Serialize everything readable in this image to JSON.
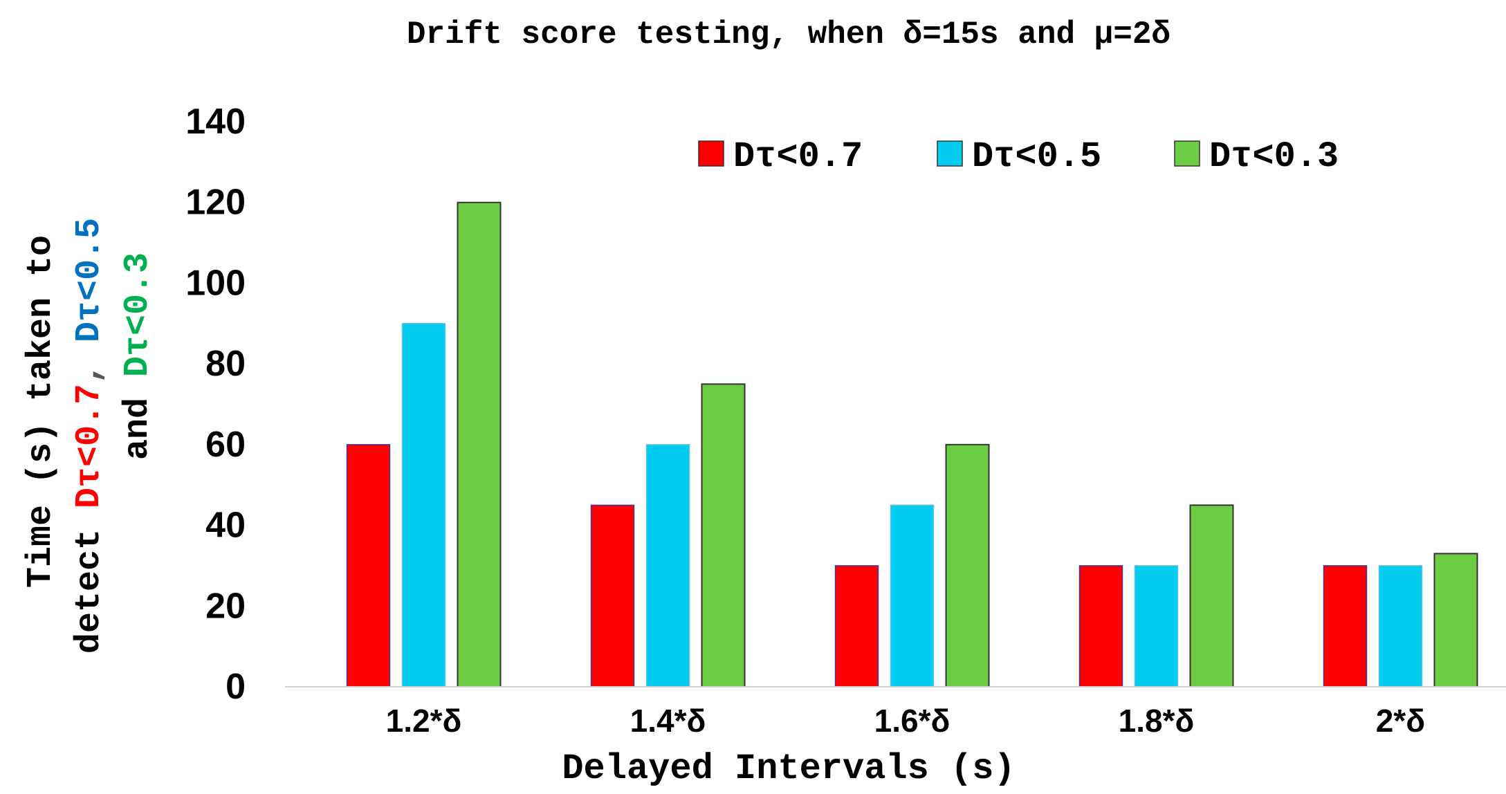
{
  "chart_data": {
    "type": "bar",
    "title": "Drift score testing, when δ=15s and μ=2δ",
    "xlabel": "Delayed Intervals (s)",
    "ylabel": {
      "line1": "Time (s) taken to",
      "line2_prefix": "detect ",
      "line2_red": "Dτ<0.7",
      "line2_sep": ", ",
      "line2_blue": "Dτ<0.5",
      "line3_prefix": "and ",
      "line3_green": "Dτ<0.3"
    },
    "categories": [
      "1.2*δ",
      "1.4*δ",
      "1.6*δ",
      "1.8*δ",
      "2*δ"
    ],
    "series": [
      {
        "name": "Dτ<0.7",
        "color": "#ff0000",
        "values": [
          60,
          45,
          30,
          30,
          30
        ]
      },
      {
        "name": "Dτ<0.5",
        "color": "#00ccee",
        "values": [
          90,
          60,
          45,
          30,
          30
        ]
      },
      {
        "name": "Dτ<0.3",
        "color": "#6ccc44",
        "values": [
          120,
          75,
          60,
          45,
          33
        ]
      }
    ],
    "ylim": [
      0,
      140
    ],
    "yticks": [
      "0",
      "20",
      "40",
      "60",
      "80",
      "100",
      "120",
      "140"
    ],
    "legend_position": "top-right",
    "grid": false,
    "label_colors": {
      "red": "#ff0000",
      "blue": "#0070c0",
      "green": "#00b050"
    }
  }
}
